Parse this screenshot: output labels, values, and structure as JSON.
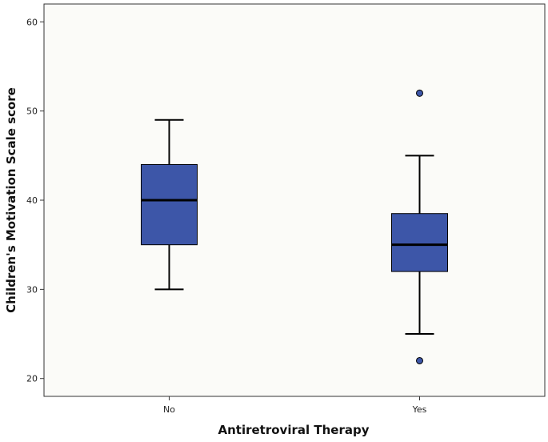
{
  "chart_data": {
    "type": "boxplot",
    "title": "",
    "xlabel": "Antiretroviral Therapy",
    "ylabel": "Children's Motivation Scale score",
    "ylim": [
      18,
      62
    ],
    "yticks": [
      20,
      30,
      40,
      50,
      60
    ],
    "categories": [
      "No",
      "Yes"
    ],
    "series": [
      {
        "name": "No",
        "whisker_low": 30,
        "q1": 35,
        "median": 40,
        "q3": 44,
        "whisker_high": 49,
        "outliers": []
      },
      {
        "name": "Yes",
        "whisker_low": 25,
        "q1": 32,
        "median": 35,
        "q3": 38.5,
        "whisker_high": 45,
        "outliers": [
          22,
          52
        ]
      }
    ],
    "grid": false,
    "legend": "none",
    "colors": {
      "box_fill": "#3d56a8",
      "stroke": "#000000",
      "background": "#fbfbf8"
    }
  }
}
